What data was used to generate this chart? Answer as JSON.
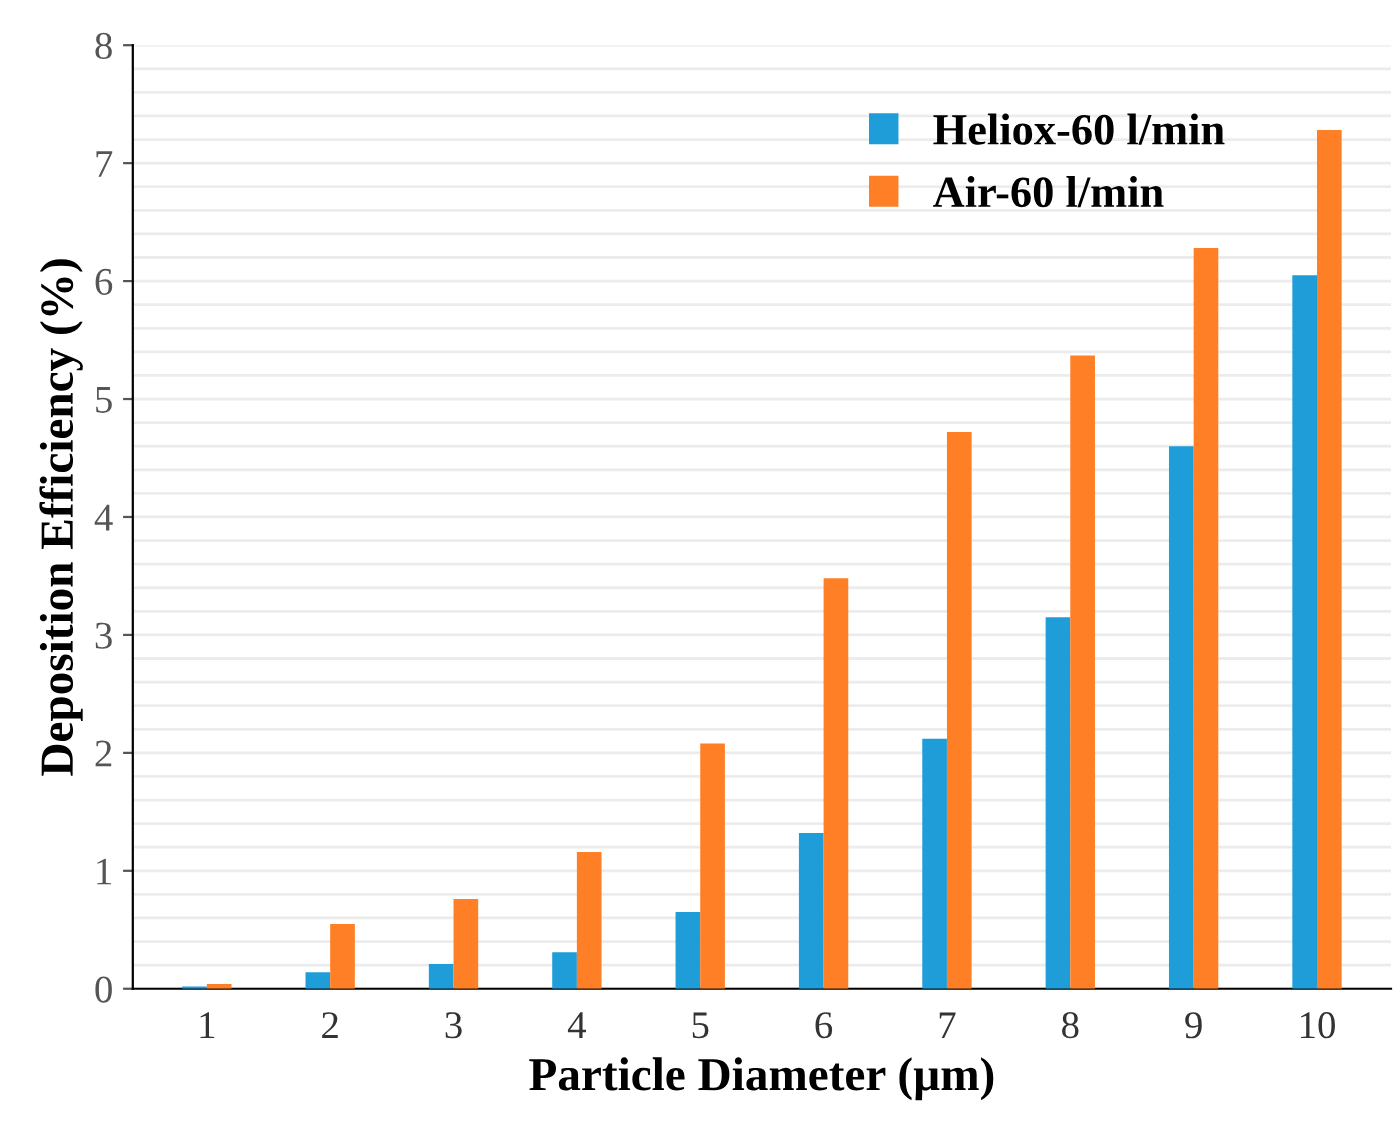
{
  "chart_data": {
    "type": "bar",
    "xlabel": "Particle Diameter (µm)",
    "ylabel": "Deposition Efficiency (%)",
    "categories": [
      "1",
      "2",
      "3",
      "4",
      "5",
      "6",
      "7",
      "8",
      "9",
      "10"
    ],
    "series": [
      {
        "name": "Heliox-60 l/min",
        "color": "#1f9dd9",
        "values": [
          0.02,
          0.14,
          0.21,
          0.31,
          0.65,
          1.32,
          2.12,
          3.15,
          4.6,
          6.05
        ]
      },
      {
        "name": "Air-60 l/min",
        "color": "#ff7f27",
        "values": [
          0.04,
          0.55,
          0.76,
          1.16,
          2.08,
          3.48,
          4.72,
          5.37,
          6.28,
          7.28
        ]
      }
    ],
    "ylim": [
      0,
      8
    ],
    "yticks": [
      0,
      1,
      2,
      3,
      4,
      5,
      6,
      7,
      8
    ],
    "grid": "y",
    "legend": "top right"
  }
}
